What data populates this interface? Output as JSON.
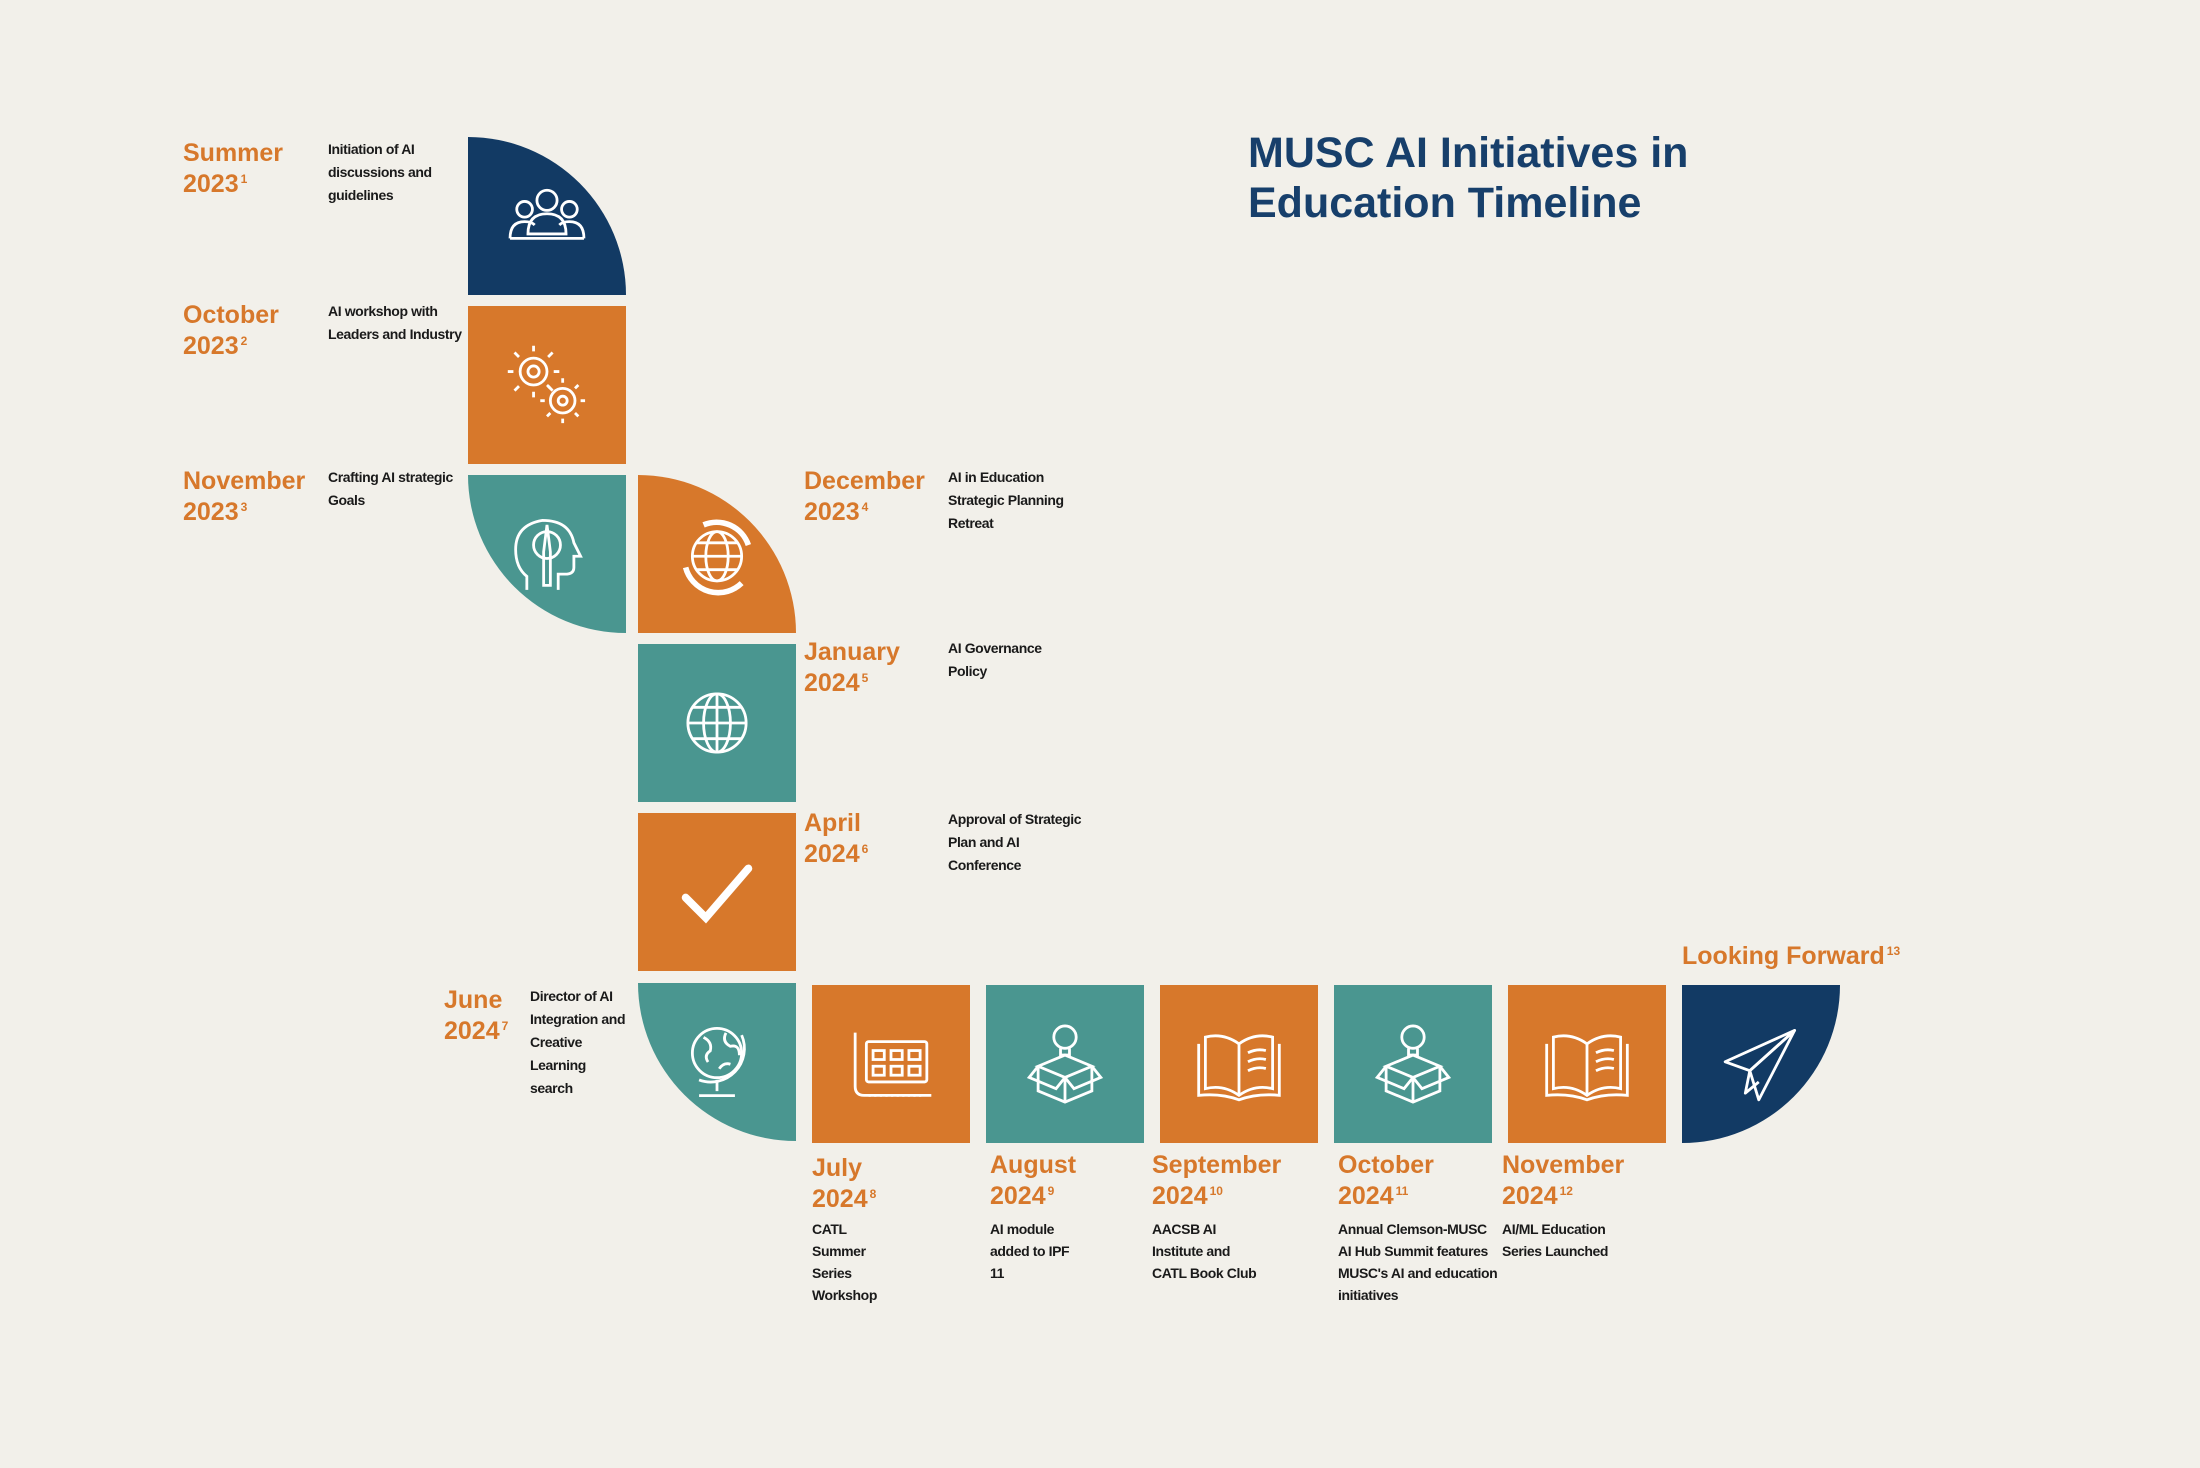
{
  "title_line1": "MUSC AI Initiatives in",
  "title_line2": "Education Timeline",
  "colors": {
    "navy": "#123a64",
    "orange": "#d7782b",
    "teal": "#4a9690",
    "background": "#f2f0ea"
  },
  "milestones": [
    {
      "period": "Summer",
      "year": "2023",
      "ref": "1",
      "description": "Initiation of AI discussions and guidelines",
      "icon": "people-group-icon"
    },
    {
      "period": "October",
      "year": "2023",
      "ref": "2",
      "description": "AI workshop with Leaders and Industry",
      "icon": "gears-icon"
    },
    {
      "period": "November",
      "year": "2023",
      "ref": "3",
      "description": "Crafting AI strategic Goals",
      "icon": "head-pencil-icon"
    },
    {
      "period": "December",
      "year": "2023",
      "ref": "4",
      "description": "AI in Education Strategic Planning Retreat",
      "icon": "globe-cycle-icon"
    },
    {
      "period": "January",
      "year": "2024",
      "ref": "5",
      "description": "AI Governance Policy",
      "icon": "globe-network-icon"
    },
    {
      "period": "April",
      "year": "2024",
      "ref": "6",
      "description": "Approval of Strategic Plan and AI Conference",
      "icon": "checkmark-icon"
    },
    {
      "period": "June",
      "year": "2024",
      "ref": "7",
      "description": "Director of AI Integration and Creative Learning search",
      "icon": "desk-globe-icon"
    },
    {
      "period": "July",
      "year": "2024",
      "ref": "8",
      "description": "CATL Summer Series Workshop",
      "icon": "dashboard-screen-icon"
    },
    {
      "period": "August",
      "year": "2024",
      "ref": "9",
      "description": "AI module added to IPF 11",
      "icon": "lightbulb-box-icon"
    },
    {
      "period": "September",
      "year": "2024",
      "ref": "10",
      "description": "AACSB AI Institute and CATL Book Club",
      "icon": "open-book-icon"
    },
    {
      "period": "October",
      "year": "2024",
      "ref": "11",
      "description": "Annual Clemson-MUSC AI Hub Summit features MUSC's AI and education initiatives",
      "icon": "lightbulb-box-icon"
    },
    {
      "period": "November",
      "year": "2024",
      "ref": "12",
      "description": "AI/ML Education Series Launched",
      "icon": "open-book-icon"
    },
    {
      "period": "Looking Forward",
      "year": "",
      "ref": "13",
      "description": "",
      "icon": "paper-plane-icon"
    }
  ]
}
